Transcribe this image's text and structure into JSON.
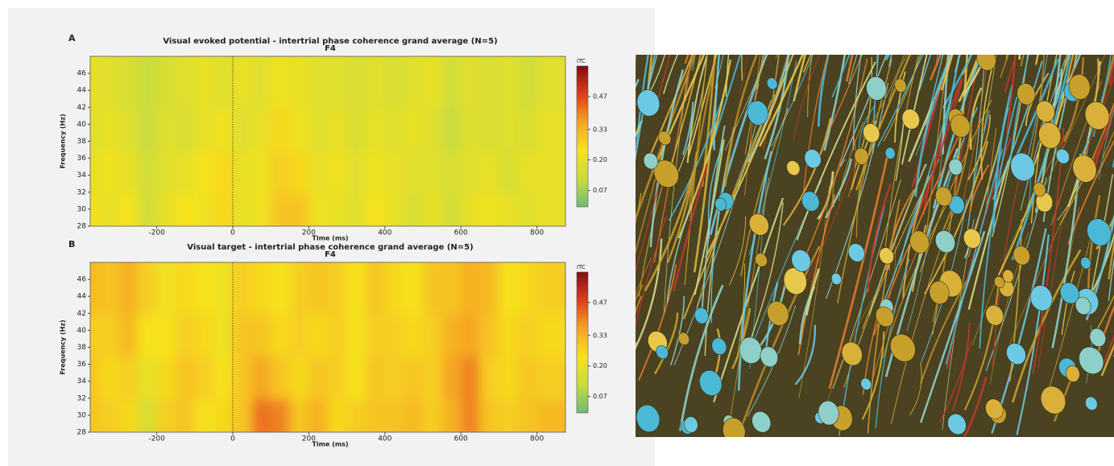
{
  "chart_data": [
    {
      "type": "heatmap",
      "panel_label": "A",
      "title": "Visual evoked potential - intertrial phase coherence grand average (N=5)",
      "subtitle": "F4",
      "x_label": "Time (ms)",
      "y_label": "Frequency (Hz)",
      "x": [
        -350,
        -300,
        -250,
        -200,
        -150,
        -100,
        -50,
        0,
        50,
        100,
        150,
        200,
        250,
        300,
        350,
        400,
        450,
        500,
        550,
        600,
        650,
        700,
        750,
        800,
        850
      ],
      "y": [
        30.5,
        35.5,
        40.5,
        45.5
      ],
      "values": [
        [
          0.22,
          0.2,
          0.24,
          0.14,
          0.2,
          0.24,
          0.22,
          0.26,
          0.2,
          0.22,
          0.3,
          0.3,
          0.22,
          0.2,
          0.18,
          0.24,
          0.2,
          0.16,
          0.2,
          0.14,
          0.2,
          0.22,
          0.2,
          0.18,
          0.2
        ],
        [
          0.2,
          0.22,
          0.2,
          0.14,
          0.18,
          0.2,
          0.24,
          0.26,
          0.2,
          0.22,
          0.28,
          0.26,
          0.2,
          0.22,
          0.18,
          0.22,
          0.2,
          0.18,
          0.18,
          0.16,
          0.18,
          0.2,
          0.16,
          0.2,
          0.2
        ],
        [
          0.18,
          0.2,
          0.18,
          0.12,
          0.18,
          0.16,
          0.2,
          0.22,
          0.18,
          0.2,
          0.26,
          0.22,
          0.18,
          0.2,
          0.16,
          0.2,
          0.18,
          0.2,
          0.18,
          0.12,
          0.18,
          0.16,
          0.18,
          0.16,
          0.2
        ],
        [
          0.2,
          0.18,
          0.16,
          0.12,
          0.16,
          0.18,
          0.2,
          0.18,
          0.2,
          0.18,
          0.22,
          0.2,
          0.18,
          0.18,
          0.16,
          0.18,
          0.16,
          0.18,
          0.2,
          0.14,
          0.18,
          0.16,
          0.18,
          0.14,
          0.18
        ]
      ],
      "xlim": [
        -375,
        875
      ],
      "ylim": [
        28,
        48
      ],
      "xticks": [
        -200,
        0,
        200,
        400,
        600,
        800
      ],
      "yticks": [
        28,
        30,
        32,
        34,
        36,
        38,
        40,
        42,
        44,
        46
      ],
      "colorbar_label": "ITC",
      "zlim": [
        0,
        0.6
      ],
      "zticks": [
        0.07,
        {
          "value": 0.2,
          "label": "0.20"
        },
        0.33,
        0.47
      ],
      "colormap": [
        "#6dbb7a",
        "#c9dc3c",
        "#f6e21e",
        "#f5a623",
        "#e23b1c",
        "#7f0d14"
      ]
    },
    {
      "type": "heatmap",
      "panel_label": "B",
      "title": "Visual target - intertrial phase coherence grand average (N=5)",
      "subtitle": "F4",
      "x_label": "Time (ms)",
      "y_label": "Frequency (Hz)",
      "x": [
        -350,
        -300,
        -250,
        -200,
        -150,
        -100,
        -50,
        0,
        50,
        100,
        150,
        200,
        250,
        300,
        350,
        400,
        450,
        500,
        550,
        600,
        650,
        700,
        750,
        800,
        850
      ],
      "y": [
        30.5,
        35.5,
        40.5,
        45.5
      ],
      "values": [
        [
          0.3,
          0.28,
          0.26,
          0.16,
          0.28,
          0.3,
          0.24,
          0.26,
          0.3,
          0.42,
          0.4,
          0.3,
          0.34,
          0.26,
          0.28,
          0.3,
          0.3,
          0.32,
          0.28,
          0.34,
          0.4,
          0.3,
          0.28,
          0.3,
          0.32
        ],
        [
          0.3,
          0.26,
          0.28,
          0.2,
          0.26,
          0.3,
          0.28,
          0.24,
          0.3,
          0.36,
          0.3,
          0.26,
          0.3,
          0.28,
          0.24,
          0.3,
          0.28,
          0.3,
          0.28,
          0.36,
          0.4,
          0.28,
          0.26,
          0.3,
          0.28
        ],
        [
          0.28,
          0.28,
          0.32,
          0.24,
          0.24,
          0.28,
          0.26,
          0.22,
          0.3,
          0.3,
          0.26,
          0.28,
          0.26,
          0.28,
          0.24,
          0.28,
          0.28,
          0.26,
          0.28,
          0.34,
          0.36,
          0.3,
          0.26,
          0.28,
          0.26
        ],
        [
          0.32,
          0.3,
          0.34,
          0.28,
          0.22,
          0.26,
          0.24,
          0.22,
          0.28,
          0.26,
          0.24,
          0.28,
          0.3,
          0.28,
          0.24,
          0.3,
          0.26,
          0.24,
          0.3,
          0.3,
          0.34,
          0.32,
          0.24,
          0.26,
          0.28
        ]
      ],
      "xlim": [
        -375,
        875
      ],
      "ylim": [
        28,
        48
      ],
      "xticks": [
        -200,
        0,
        200,
        400,
        600,
        800
      ],
      "yticks": [
        28,
        30,
        32,
        34,
        36,
        38,
        40,
        42,
        44,
        46
      ],
      "colorbar_label": "ITC",
      "zlim": [
        0,
        0.6
      ],
      "zticks": [
        0.07,
        {
          "value": 0.2,
          "label": "0.20"
        },
        0.33,
        0.47
      ],
      "colormap": [
        "#6dbb7a",
        "#c9dc3c",
        "#f6e21e",
        "#f5a623",
        "#e23b1c",
        "#7f0d14"
      ]
    }
  ]
}
